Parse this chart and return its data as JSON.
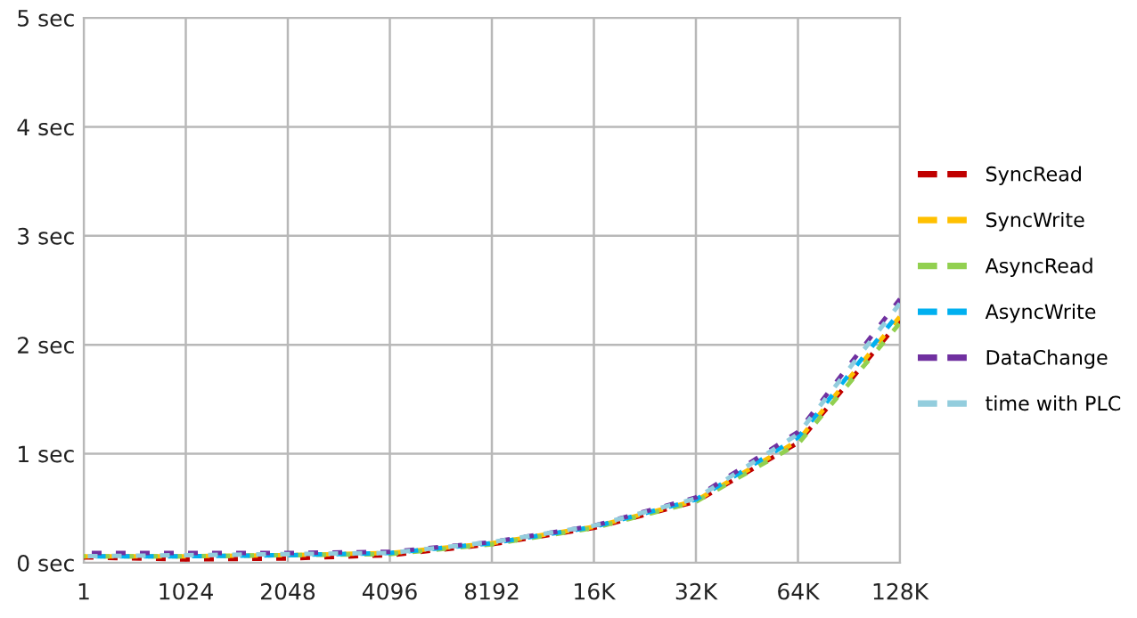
{
  "chart_data": {
    "type": "line",
    "line_style": "dashed",
    "marker": "none",
    "grid": true,
    "legend": "right",
    "categories": [
      "1",
      "1024",
      "2048",
      "4096",
      "8192",
      "16K",
      "32K",
      "64K",
      "128K"
    ],
    "ylim": [
      0,
      5
    ],
    "yticks": [
      {
        "value": 0,
        "label": "0 sec"
      },
      {
        "value": 1,
        "label": "1 sec"
      },
      {
        "value": 2,
        "label": "2 sec"
      },
      {
        "value": 3,
        "label": "3 sec"
      },
      {
        "value": 4,
        "label": "4 sec"
      },
      {
        "value": 5,
        "label": "5 sec"
      }
    ],
    "series": [
      {
        "name": "SyncRead",
        "color": "#c00000",
        "values": [
          0.05,
          0.03,
          0.04,
          0.07,
          0.17,
          0.32,
          0.56,
          1.1,
          2.22
        ]
      },
      {
        "name": "SyncWrite",
        "color": "#ffc000",
        "values": [
          0.06,
          0.06,
          0.07,
          0.09,
          0.18,
          0.33,
          0.57,
          1.12,
          2.26
        ]
      },
      {
        "name": "AsyncRead",
        "color": "#92d050",
        "values": [
          0.06,
          0.06,
          0.07,
          0.08,
          0.17,
          0.32,
          0.56,
          1.09,
          2.2
        ]
      },
      {
        "name": "AsyncWrite",
        "color": "#00b0f0",
        "values": [
          0.06,
          0.06,
          0.07,
          0.09,
          0.18,
          0.33,
          0.58,
          1.15,
          2.3
        ]
      },
      {
        "name": "DataChange",
        "color": "#7030a0",
        "values": [
          0.09,
          0.09,
          0.09,
          0.1,
          0.19,
          0.34,
          0.6,
          1.2,
          2.42
        ]
      },
      {
        "name": "time with PLC",
        "color": "#93cddd",
        "values": [
          0.06,
          0.07,
          0.08,
          0.09,
          0.19,
          0.34,
          0.59,
          1.18,
          2.38
        ]
      }
    ]
  }
}
